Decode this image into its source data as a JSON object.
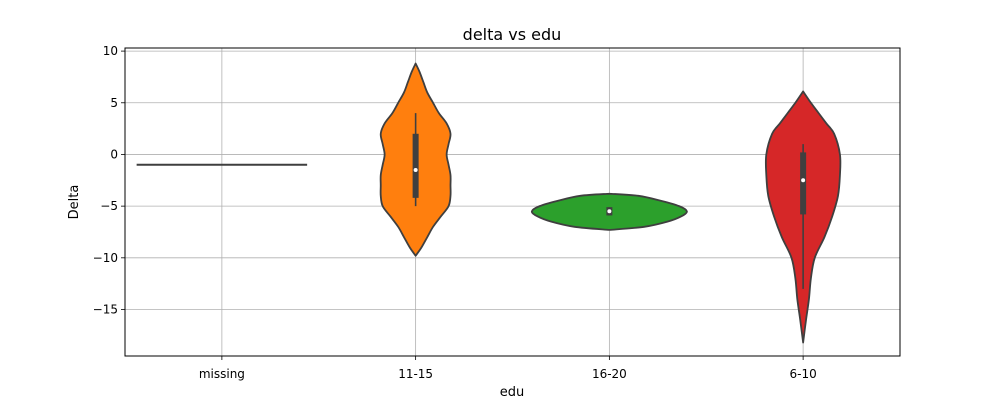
{
  "chart_data": {
    "type": "violin",
    "title": "delta vs edu",
    "xlabel": "edu",
    "ylabel": "Delta",
    "categories": [
      "missing",
      "11-15",
      "16-20",
      "6-10"
    ],
    "ylim": [
      -19.5,
      10.3
    ],
    "yticks": [
      -15,
      -10,
      -5,
      0,
      5,
      10
    ],
    "yticks_labels": [
      "−15",
      "−10",
      "−5",
      "0",
      "5",
      "10"
    ],
    "grid": true,
    "legend": "none",
    "series": [
      {
        "category": "missing",
        "color": "#1f77b4",
        "single_value": -1,
        "profile": [
          [
            -1,
            0.44
          ]
        ]
      },
      {
        "category": "11-15",
        "color": "#ff7f0e",
        "min": -5.0,
        "q1": -4.2,
        "median": -1.5,
        "q3": 2.0,
        "max": 4.0,
        "profile": [
          [
            -9.8,
            0.0
          ],
          [
            -9.0,
            0.03
          ],
          [
            -8.0,
            0.06
          ],
          [
            -7.0,
            0.09
          ],
          [
            -6.0,
            0.13
          ],
          [
            -5.0,
            0.17
          ],
          [
            -4.0,
            0.18
          ],
          [
            -3.0,
            0.18
          ],
          [
            -2.0,
            0.18
          ],
          [
            -1.0,
            0.17
          ],
          [
            0.0,
            0.16
          ],
          [
            1.0,
            0.17
          ],
          [
            2.0,
            0.18
          ],
          [
            3.0,
            0.16
          ],
          [
            4.0,
            0.12
          ],
          [
            5.0,
            0.09
          ],
          [
            6.0,
            0.06
          ],
          [
            7.0,
            0.04
          ],
          [
            8.0,
            0.02
          ],
          [
            8.8,
            0.0
          ]
        ]
      },
      {
        "category": "16-20",
        "color": "#2ca02c",
        "min": -5.9,
        "q1": -5.9,
        "median": -5.5,
        "q3": -5.1,
        "max": -5.1,
        "profile": [
          [
            -7.3,
            0.0
          ],
          [
            -7.0,
            0.18
          ],
          [
            -6.5,
            0.3
          ],
          [
            -6.0,
            0.37
          ],
          [
            -5.5,
            0.4
          ],
          [
            -5.0,
            0.36
          ],
          [
            -4.5,
            0.27
          ],
          [
            -4.0,
            0.15
          ],
          [
            -3.8,
            0.0
          ]
        ]
      },
      {
        "category": "6-10",
        "color": "#d62728",
        "min": -13.0,
        "q1": -5.8,
        "median": -2.5,
        "q3": 0.2,
        "max": 1.0,
        "profile": [
          [
            -18.2,
            0.0
          ],
          [
            -16.0,
            0.015
          ],
          [
            -14.0,
            0.03
          ],
          [
            -12.0,
            0.04
          ],
          [
            -10.0,
            0.06
          ],
          [
            -8.0,
            0.11
          ],
          [
            -6.0,
            0.15
          ],
          [
            -4.0,
            0.18
          ],
          [
            -2.0,
            0.19
          ],
          [
            0.0,
            0.19
          ],
          [
            2.0,
            0.16
          ],
          [
            3.0,
            0.12
          ],
          [
            4.0,
            0.08
          ],
          [
            5.0,
            0.04
          ],
          [
            6.1,
            0.0
          ]
        ]
      }
    ]
  }
}
